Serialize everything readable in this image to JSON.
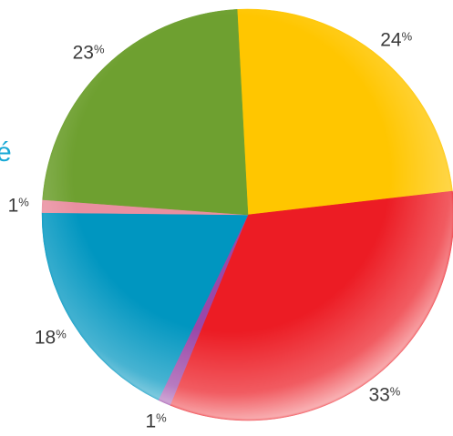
{
  "edge_text": "é",
  "colors": {
    "label_text": "#3a3a3a",
    "edge_text": "#18a9d6"
  },
  "chart_data": {
    "type": "pie",
    "start_angle_deg": -3,
    "direction": "clockwise",
    "slices": [
      {
        "value": 24,
        "label": "24",
        "unit": "%",
        "color": "#ffc600"
      },
      {
        "value": 33,
        "label": "33",
        "unit": "%",
        "color": "#ec1c24"
      },
      {
        "value": 1,
        "label": "1",
        "unit": "%",
        "color": "#9b47a8"
      },
      {
        "value": 18,
        "label": "18",
        "unit": "%",
        "color": "#0096c0"
      },
      {
        "value": 1,
        "label": "1",
        "unit": "%",
        "color": "#e98fa0"
      },
      {
        "value": 23,
        "label": "23",
        "unit": "%",
        "color": "#6ea030"
      }
    ]
  }
}
